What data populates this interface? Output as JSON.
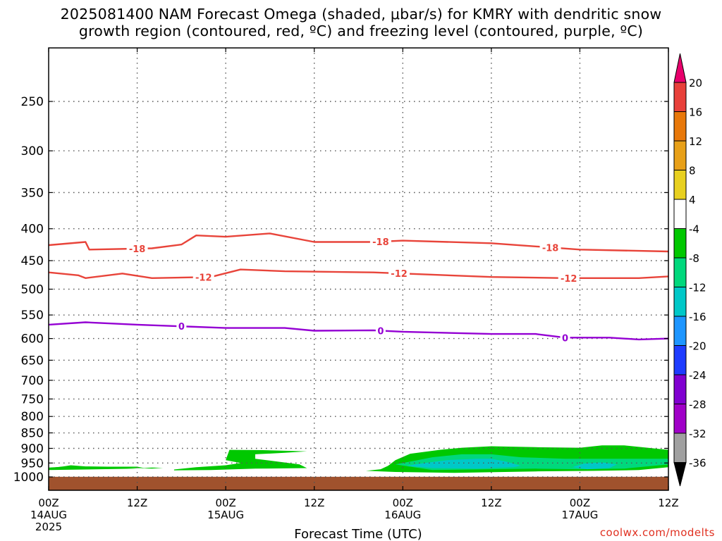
{
  "title_line1": "2025081400 NAM Forecast Omega (shaded, μbar/s) for KMRY with dendritic snow",
  "title_line2": "growth region (contoured, red, ºC) and freezing level (contoured, purple, ºC)",
  "credit": "coolwx.com/modelts",
  "chart_data": {
    "type": "contour_timeseries",
    "xlabel": "Forecast Time (UTC)",
    "x_ticks": [
      {
        "h": 0,
        "l1": "00Z",
        "l2": "14AUG",
        "l3": "2025"
      },
      {
        "h": 12,
        "l1": "12Z",
        "l2": "",
        "l3": ""
      },
      {
        "h": 24,
        "l1": "00Z",
        "l2": "15AUG",
        "l3": ""
      },
      {
        "h": 36,
        "l1": "12Z",
        "l2": "",
        "l3": ""
      },
      {
        "h": 48,
        "l1": "00Z",
        "l2": "16AUG",
        "l3": ""
      },
      {
        "h": 60,
        "l1": "12Z",
        "l2": "",
        "l3": ""
      },
      {
        "h": 72,
        "l1": "00Z",
        "l2": "17AUG",
        "l3": ""
      },
      {
        "h": 84,
        "l1": "12Z",
        "l2": "",
        "l3": ""
      }
    ],
    "x_range_hours": [
      0,
      84
    ],
    "y_levels_hpa": [
      250,
      300,
      350,
      400,
      450,
      500,
      550,
      600,
      650,
      700,
      750,
      800,
      850,
      900,
      950,
      1000
    ],
    "y_axis": "pressure (hPa), log scale, inverted",
    "grid": true,
    "surface_pressure_hpa": 1010,
    "surface_color": "#a0522d",
    "contours": [
      {
        "label": "-18",
        "color": "#e8443a",
        "points": [
          [
            0,
            425
          ],
          [
            5,
            420
          ],
          [
            5.5,
            432
          ],
          [
            14,
            430
          ],
          [
            18,
            424
          ],
          [
            20,
            410
          ],
          [
            24,
            412
          ],
          [
            30,
            407
          ],
          [
            36,
            420
          ],
          [
            44,
            420
          ],
          [
            48,
            418
          ],
          [
            60,
            422
          ],
          [
            72,
            432
          ],
          [
            84,
            435
          ]
        ],
        "label_at": [
          12,
          45,
          68
        ]
      },
      {
        "label": "-12",
        "color": "#e8443a",
        "points": [
          [
            0,
            470
          ],
          [
            4,
            475
          ],
          [
            5,
            480
          ],
          [
            10,
            472
          ],
          [
            14,
            480
          ],
          [
            22,
            478
          ],
          [
            26,
            465
          ],
          [
            32,
            468
          ],
          [
            44,
            470
          ],
          [
            60,
            478
          ],
          [
            70,
            480
          ],
          [
            80,
            480
          ],
          [
            84,
            477
          ]
        ],
        "label_at": [
          21,
          47.5,
          70.5
        ]
      },
      {
        "label": "0",
        "color": "#9400d3",
        "points": [
          [
            0,
            570
          ],
          [
            5,
            565
          ],
          [
            12,
            570
          ],
          [
            24,
            577
          ],
          [
            32,
            577
          ],
          [
            36,
            583
          ],
          [
            44,
            582
          ],
          [
            48,
            585
          ],
          [
            60,
            590
          ],
          [
            66,
            590
          ],
          [
            70,
            598
          ],
          [
            76,
            598
          ],
          [
            80,
            602
          ],
          [
            84,
            600
          ]
        ],
        "label_at": [
          18,
          45,
          70
        ]
      }
    ],
    "shaded_omega": [
      {
        "level": "-4 to -8",
        "color": "#00c800",
        "region": "hours 0-35, 900-1000 hPa; hours 43-84, 880-1000 hPa"
      },
      {
        "level": "-8 to -12",
        "color": "#00d87c",
        "region": "hours 48-84, 900-990 hPa"
      },
      {
        "level": "-12 to -16",
        "color": "#00c8c8",
        "region": "hours 48-65, 940-985 hPa; hours 71-77, 955-985 hPa"
      }
    ],
    "colorbar": {
      "labels": [
        "20",
        "16",
        "12",
        "8",
        "4",
        "-4",
        "-8",
        "-12",
        "-16",
        "-20",
        "-24",
        "-28",
        "-32",
        "-36"
      ],
      "colors": [
        "#e8006c",
        "#e8403a",
        "#e8780a",
        "#e8a018",
        "#e8d020",
        "#ffffff",
        "#00c800",
        "#00d87c",
        "#00c8c8",
        "#1e96ff",
        "#1e3cff",
        "#8000d0",
        "#a000c8",
        "#a0a0a0",
        "#000000"
      ]
    }
  }
}
